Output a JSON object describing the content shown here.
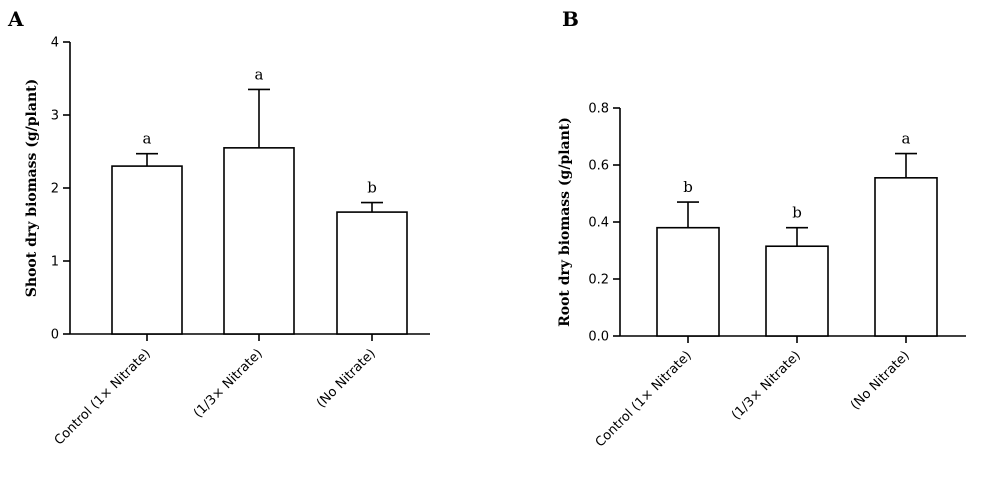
{
  "chart_data": [
    {
      "panel": "A",
      "type": "bar",
      "ylabel": "Shoot dry biomass (g/plant)",
      "xlabel": "",
      "categories": [
        "Control (1× Nitrate)",
        "(1/3× Nitrate)",
        "(No Nitrate)"
      ],
      "values": [
        2.3,
        2.55,
        1.67
      ],
      "errors": [
        0.17,
        0.8,
        0.13
      ],
      "significance": [
        "a",
        "a",
        "b"
      ],
      "ylim": [
        0,
        4
      ],
      "yticks": [
        "0",
        "1",
        "2",
        "3",
        "4"
      ],
      "ytick_values": [
        0,
        1,
        2,
        3,
        4
      ]
    },
    {
      "panel": "B",
      "type": "bar",
      "ylabel": "Root dry biomass (g/plant)",
      "xlabel": "",
      "categories": [
        "Control (1× Nitrate)",
        "(1/3× Nitrate)",
        "(No Nitrate)"
      ],
      "values": [
        0.38,
        0.315,
        0.555
      ],
      "errors": [
        0.09,
        0.065,
        0.085
      ],
      "significance": [
        "b",
        "b",
        "a"
      ],
      "ylim": [
        0,
        0.8
      ],
      "yticks": [
        "0.0",
        "0.2",
        "0.4",
        "0.6",
        "0.8"
      ],
      "ytick_values": [
        0,
        0.2,
        0.4,
        0.6,
        0.8
      ]
    }
  ]
}
